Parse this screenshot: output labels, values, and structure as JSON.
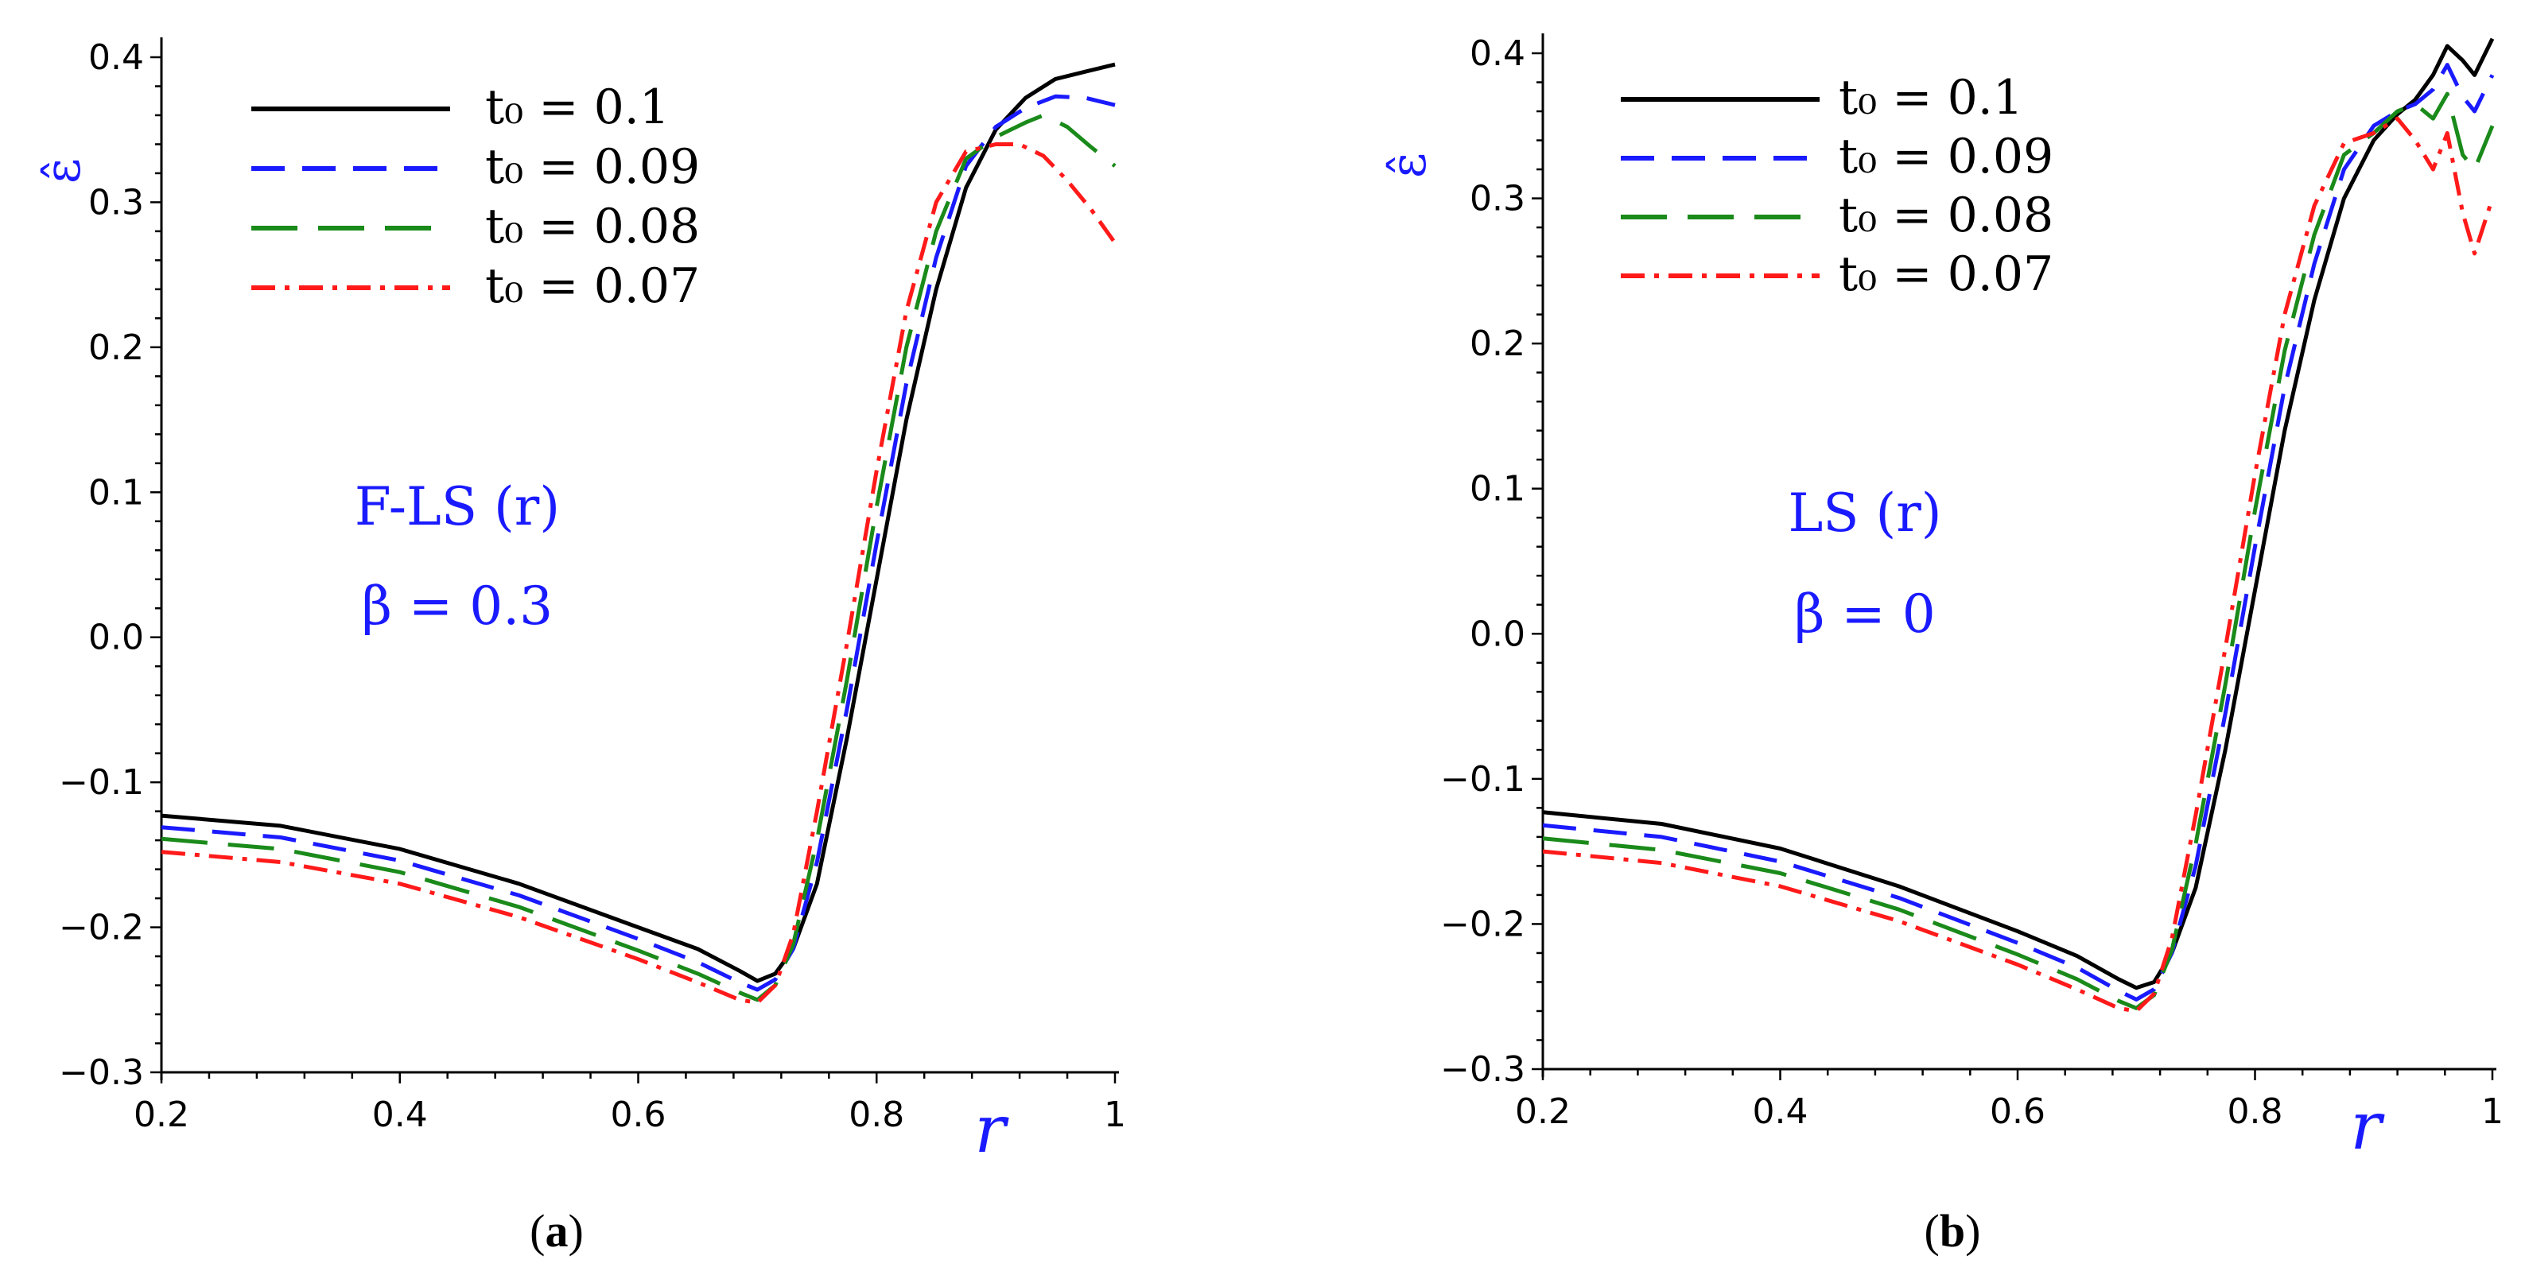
{
  "colors": {
    "axis_title": "#1a1aff",
    "series": [
      "#000000",
      "#1a1aff",
      "#1a8a1a",
      "#ff1a1a"
    ]
  },
  "chart_data": [
    {
      "type": "line",
      "caption": "(a)",
      "caption_bold_letter": "a",
      "xlabel": "r",
      "ylabel": "ε̂",
      "xlim": [
        0.2,
        1.0
      ],
      "ylim": [
        -0.3,
        0.4
      ],
      "xticks": [
        0.2,
        0.4,
        0.6,
        0.8,
        1.0
      ],
      "xtick_labels": [
        "0.2",
        "0.4",
        "0.6",
        "0.8",
        "1"
      ],
      "yticks": [
        -0.3,
        -0.2,
        -0.1,
        0.0,
        0.1,
        0.2,
        0.3,
        0.4
      ],
      "ytick_labels": [
        "−0.3",
        "−0.2",
        "−0.1",
        "0.0",
        "0.1",
        "0.2",
        "0.3",
        "0.4"
      ],
      "annotation": [
        "F-LS (r)",
        "β = 0.3"
      ],
      "legend_position": "top-left",
      "series": [
        {
          "name": "t₀ = 0.1",
          "style": "solid",
          "color": "#000000",
          "points": [
            [
              0.2,
              -0.123
            ],
            [
              0.3,
              -0.13
            ],
            [
              0.4,
              -0.146
            ],
            [
              0.5,
              -0.17
            ],
            [
              0.6,
              -0.2
            ],
            [
              0.65,
              -0.215
            ],
            [
              0.685,
              -0.23
            ],
            [
              0.7,
              -0.237
            ],
            [
              0.715,
              -0.232
            ],
            [
              0.73,
              -0.215
            ],
            [
              0.75,
              -0.17
            ],
            [
              0.775,
              -0.07
            ],
            [
              0.8,
              0.04
            ],
            [
              0.825,
              0.15
            ],
            [
              0.85,
              0.24
            ],
            [
              0.875,
              0.31
            ],
            [
              0.9,
              0.35
            ],
            [
              0.925,
              0.372
            ],
            [
              0.95,
              0.385
            ],
            [
              0.975,
              0.39
            ],
            [
              1.0,
              0.395
            ]
          ]
        },
        {
          "name": "t₀ = 0.09",
          "style": "dashed",
          "color": "#1a1aff",
          "points": [
            [
              0.2,
              -0.131
            ],
            [
              0.3,
              -0.138
            ],
            [
              0.4,
              -0.154
            ],
            [
              0.5,
              -0.178
            ],
            [
              0.6,
              -0.208
            ],
            [
              0.65,
              -0.224
            ],
            [
              0.685,
              -0.238
            ],
            [
              0.7,
              -0.243
            ],
            [
              0.715,
              -0.236
            ],
            [
              0.73,
              -0.215
            ],
            [
              0.75,
              -0.155
            ],
            [
              0.775,
              -0.05
            ],
            [
              0.8,
              0.065
            ],
            [
              0.825,
              0.175
            ],
            [
              0.85,
              0.262
            ],
            [
              0.875,
              0.325
            ],
            [
              0.9,
              0.352
            ],
            [
              0.925,
              0.365
            ],
            [
              0.95,
              0.373
            ],
            [
              0.975,
              0.372
            ],
            [
              1.0,
              0.367
            ]
          ]
        },
        {
          "name": "t₀ = 0.08",
          "style": "longdash",
          "color": "#1a8a1a",
          "points": [
            [
              0.2,
              -0.139
            ],
            [
              0.3,
              -0.146
            ],
            [
              0.4,
              -0.162
            ],
            [
              0.5,
              -0.186
            ],
            [
              0.6,
              -0.216
            ],
            [
              0.65,
              -0.232
            ],
            [
              0.685,
              -0.245
            ],
            [
              0.7,
              -0.25
            ],
            [
              0.715,
              -0.24
            ],
            [
              0.73,
              -0.212
            ],
            [
              0.75,
              -0.14
            ],
            [
              0.775,
              -0.03
            ],
            [
              0.8,
              0.09
            ],
            [
              0.825,
              0.2
            ],
            [
              0.85,
              0.28
            ],
            [
              0.875,
              0.33
            ],
            [
              0.9,
              0.345
            ],
            [
              0.925,
              0.355
            ],
            [
              0.94,
              0.36
            ],
            [
              0.96,
              0.352
            ],
            [
              0.98,
              0.338
            ],
            [
              1.0,
              0.325
            ]
          ]
        },
        {
          "name": "t₀ = 0.07",
          "style": "dashdot",
          "color": "#ff1a1a",
          "points": [
            [
              0.2,
              -0.148
            ],
            [
              0.3,
              -0.155
            ],
            [
              0.4,
              -0.17
            ],
            [
              0.5,
              -0.193
            ],
            [
              0.6,
              -0.222
            ],
            [
              0.65,
              -0.238
            ],
            [
              0.685,
              -0.25
            ],
            [
              0.7,
              -0.252
            ],
            [
              0.715,
              -0.24
            ],
            [
              0.73,
              -0.205
            ],
            [
              0.75,
              -0.12
            ],
            [
              0.775,
              -0.005
            ],
            [
              0.8,
              0.115
            ],
            [
              0.825,
              0.225
            ],
            [
              0.85,
              0.3
            ],
            [
              0.875,
              0.335
            ],
            [
              0.9,
              0.34
            ],
            [
              0.92,
              0.34
            ],
            [
              0.94,
              0.332
            ],
            [
              0.96,
              0.315
            ],
            [
              0.98,
              0.295
            ],
            [
              1.0,
              0.272
            ]
          ]
        }
      ]
    },
    {
      "type": "line",
      "caption": "(b)",
      "caption_bold_letter": "b",
      "xlabel": "r",
      "ylabel": "ε̂",
      "xlim": [
        0.2,
        1.0
      ],
      "ylim": [
        -0.3,
        0.4
      ],
      "xticks": [
        0.2,
        0.4,
        0.6,
        0.8,
        1.0
      ],
      "xtick_labels": [
        "0.2",
        "0.4",
        "0.6",
        "0.8",
        "1"
      ],
      "yticks": [
        -0.3,
        -0.2,
        -0.1,
        0.0,
        0.1,
        0.2,
        0.3,
        0.4
      ],
      "ytick_labels": [
        "−0.3",
        "−0.2",
        "−0.1",
        "0.0",
        "0.1",
        "0.2",
        "0.3",
        "0.4"
      ],
      "annotation": [
        "LS (r)",
        "β = 0"
      ],
      "legend_position": "top-left",
      "series": [
        {
          "name": "t₀ = 0.1",
          "style": "solid",
          "color": "#000000",
          "points": [
            [
              0.2,
              -0.123
            ],
            [
              0.3,
              -0.131
            ],
            [
              0.4,
              -0.148
            ],
            [
              0.5,
              -0.174
            ],
            [
              0.6,
              -0.205
            ],
            [
              0.65,
              -0.222
            ],
            [
              0.685,
              -0.238
            ],
            [
              0.7,
              -0.244
            ],
            [
              0.715,
              -0.24
            ],
            [
              0.73,
              -0.22
            ],
            [
              0.75,
              -0.175
            ],
            [
              0.775,
              -0.08
            ],
            [
              0.8,
              0.03
            ],
            [
              0.825,
              0.14
            ],
            [
              0.85,
              0.23
            ],
            [
              0.875,
              0.3
            ],
            [
              0.9,
              0.34
            ],
            [
              0.92,
              0.358
            ],
            [
              0.935,
              0.368
            ],
            [
              0.95,
              0.385
            ],
            [
              0.962,
              0.405
            ],
            [
              0.975,
              0.395
            ],
            [
              0.985,
              0.385
            ],
            [
              1.0,
              0.41
            ]
          ]
        },
        {
          "name": "t₀ = 0.09",
          "style": "dashed",
          "color": "#1a1aff",
          "points": [
            [
              0.2,
              -0.132
            ],
            [
              0.3,
              -0.14
            ],
            [
              0.4,
              -0.157
            ],
            [
              0.5,
              -0.182
            ],
            [
              0.6,
              -0.213
            ],
            [
              0.65,
              -0.23
            ],
            [
              0.685,
              -0.246
            ],
            [
              0.7,
              -0.252
            ],
            [
              0.715,
              -0.245
            ],
            [
              0.73,
              -0.22
            ],
            [
              0.75,
              -0.16
            ],
            [
              0.775,
              -0.055
            ],
            [
              0.8,
              0.06
            ],
            [
              0.825,
              0.17
            ],
            [
              0.85,
              0.255
            ],
            [
              0.875,
              0.32
            ],
            [
              0.9,
              0.35
            ],
            [
              0.92,
              0.36
            ],
            [
              0.935,
              0.365
            ],
            [
              0.95,
              0.375
            ],
            [
              0.962,
              0.392
            ],
            [
              0.975,
              0.37
            ],
            [
              0.985,
              0.36
            ],
            [
              1.0,
              0.385
            ]
          ]
        },
        {
          "name": "t₀ = 0.08",
          "style": "longdash",
          "color": "#1a8a1a",
          "points": [
            [
              0.2,
              -0.141
            ],
            [
              0.3,
              -0.149
            ],
            [
              0.4,
              -0.165
            ],
            [
              0.5,
              -0.19
            ],
            [
              0.6,
              -0.221
            ],
            [
              0.65,
              -0.238
            ],
            [
              0.685,
              -0.253
            ],
            [
              0.7,
              -0.258
            ],
            [
              0.715,
              -0.249
            ],
            [
              0.73,
              -0.218
            ],
            [
              0.75,
              -0.145
            ],
            [
              0.775,
              -0.035
            ],
            [
              0.8,
              0.085
            ],
            [
              0.825,
              0.195
            ],
            [
              0.85,
              0.275
            ],
            [
              0.875,
              0.33
            ],
            [
              0.9,
              0.345
            ],
            [
              0.92,
              0.36
            ],
            [
              0.935,
              0.365
            ],
            [
              0.95,
              0.355
            ],
            [
              0.962,
              0.372
            ],
            [
              0.975,
              0.33
            ],
            [
              0.985,
              0.32
            ],
            [
              1.0,
              0.35
            ]
          ]
        },
        {
          "name": "t₀ = 0.07",
          "style": "dashdot",
          "color": "#ff1a1a",
          "points": [
            [
              0.2,
              -0.15
            ],
            [
              0.3,
              -0.158
            ],
            [
              0.4,
              -0.174
            ],
            [
              0.5,
              -0.198
            ],
            [
              0.6,
              -0.228
            ],
            [
              0.65,
              -0.245
            ],
            [
              0.685,
              -0.258
            ],
            [
              0.7,
              -0.26
            ],
            [
              0.715,
              -0.248
            ],
            [
              0.73,
              -0.21
            ],
            [
              0.75,
              -0.125
            ],
            [
              0.775,
              -0.01
            ],
            [
              0.8,
              0.11
            ],
            [
              0.825,
              0.22
            ],
            [
              0.85,
              0.295
            ],
            [
              0.875,
              0.338
            ],
            [
              0.9,
              0.345
            ],
            [
              0.92,
              0.355
            ],
            [
              0.935,
              0.34
            ],
            [
              0.95,
              0.32
            ],
            [
              0.962,
              0.345
            ],
            [
              0.975,
              0.29
            ],
            [
              0.985,
              0.262
            ],
            [
              1.0,
              0.3
            ]
          ]
        }
      ]
    }
  ]
}
